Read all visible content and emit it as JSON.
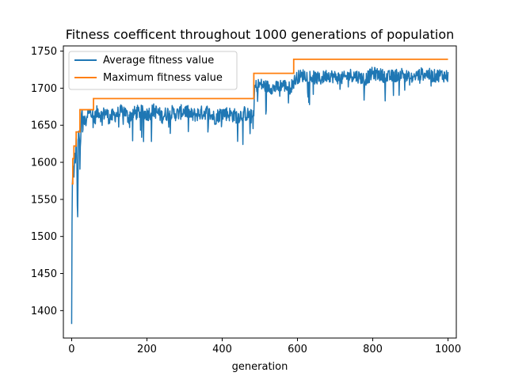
{
  "colors": {
    "average": "#1f77b4",
    "maximum": "#ff7f0e",
    "axis": "#000000",
    "background": "#ffffff"
  },
  "chart_data": {
    "type": "line",
    "title": "Fitness coefficent throughout 1000 generations of population",
    "xlabel": "generation",
    "ylabel": "",
    "xlim": [
      -22,
      1022
    ],
    "ylim": [
      1363,
      1757
    ],
    "xticks": [
      0,
      200,
      400,
      600,
      800,
      1000
    ],
    "yticks": [
      1400,
      1450,
      1500,
      1550,
      1600,
      1650,
      1700,
      1750
    ],
    "grid": false,
    "legend_placement": "top-left",
    "series": [
      {
        "name": "Average fitness value",
        "style": "noisy",
        "x": [
          0,
          1,
          2,
          4,
          6,
          8,
          10,
          13,
          16,
          18,
          20,
          22,
          25,
          28,
          30,
          32,
          35,
          40,
          45,
          50,
          55,
          60,
          70,
          80,
          90,
          100,
          120,
          140,
          150,
          160,
          180,
          200,
          220,
          240,
          260,
          280,
          300,
          320,
          340,
          360,
          380,
          400,
          420,
          440,
          460,
          484,
          486,
          490,
          500,
          520,
          540,
          560,
          580,
          590,
          595,
          600,
          620,
          640,
          660,
          680,
          700,
          720,
          740,
          760,
          780,
          800,
          820,
          840,
          860,
          880,
          900,
          920,
          940,
          960,
          980,
          1000
        ],
        "y": [
          1382,
          1520,
          1572,
          1595,
          1580,
          1610,
          1605,
          1625,
          1515,
          1630,
          1640,
          1600,
          1655,
          1660,
          1645,
          1665,
          1650,
          1660,
          1675,
          1670,
          1665,
          1658,
          1670,
          1662,
          1668,
          1660,
          1665,
          1670,
          1660,
          1665,
          1668,
          1665,
          1670,
          1662,
          1668,
          1665,
          1670,
          1663,
          1666,
          1668,
          1660,
          1667,
          1665,
          1662,
          1666,
          1660,
          1700,
          1703,
          1705,
          1702,
          1700,
          1705,
          1700,
          1708,
          1712,
          1715,
          1718,
          1715,
          1712,
          1718,
          1715,
          1713,
          1718,
          1716,
          1712,
          1720,
          1718,
          1715,
          1717,
          1720,
          1712,
          1718,
          1720,
          1716,
          1718,
          1716
        ]
      },
      {
        "name": "Maximum fitness value",
        "style": "step",
        "x": [
          0,
          3,
          6,
          12,
          22,
          58,
          484,
          590,
          1000
        ],
        "y": [
          1571,
          1605,
          1622,
          1641,
          1671,
          1686,
          1720,
          1739,
          1739
        ]
      }
    ]
  }
}
